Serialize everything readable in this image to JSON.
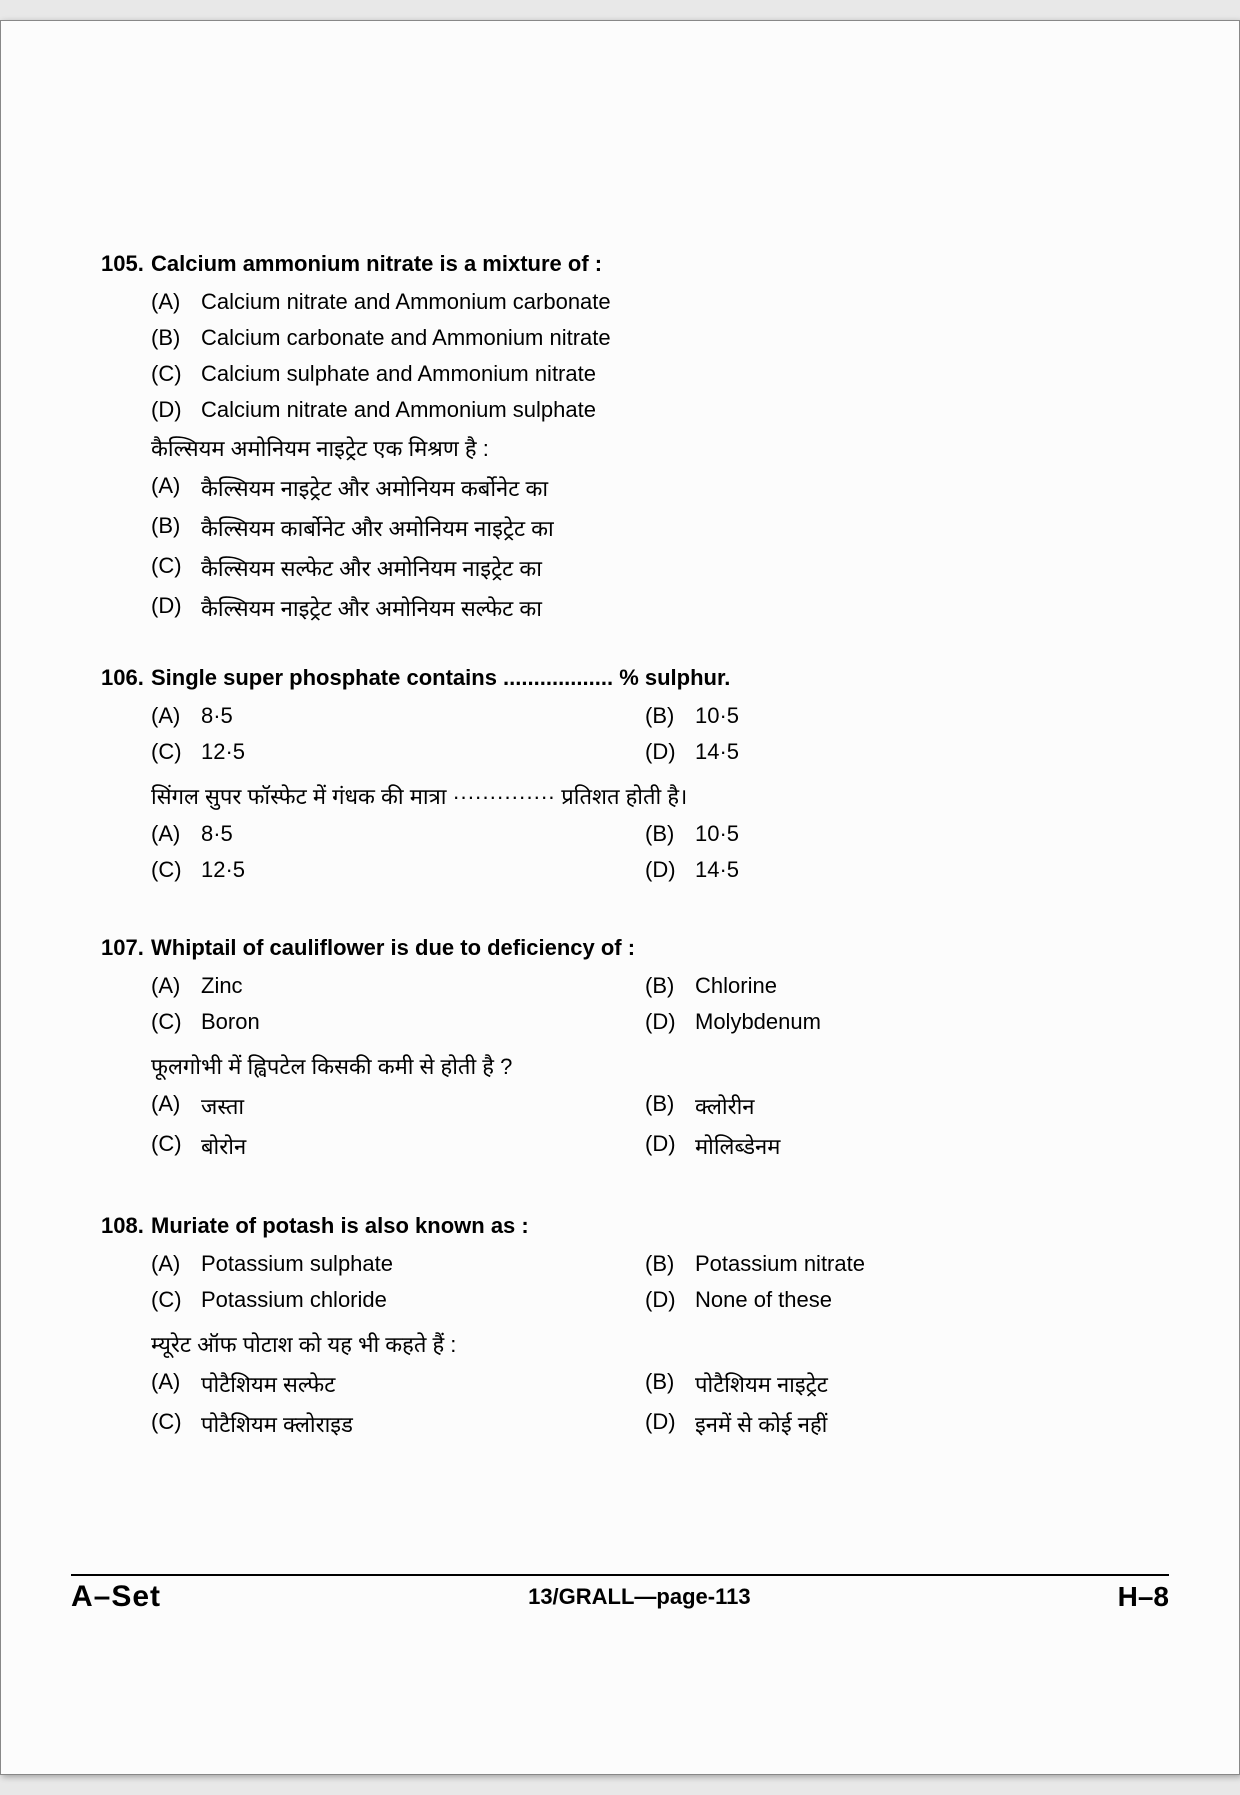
{
  "questions": [
    {
      "number": "105.",
      "text_en": "Calcium ammonium nitrate is a mixture of :",
      "options_en": [
        {
          "label": "(A)",
          "text": "Calcium nitrate and Ammonium carbonate"
        },
        {
          "label": "(B)",
          "text": "Calcium carbonate and Ammonium nitrate"
        },
        {
          "label": "(C)",
          "text": "Calcium sulphate and Ammonium nitrate"
        },
        {
          "label": "(D)",
          "text": "Calcium nitrate and Ammonium sulphate"
        }
      ],
      "text_hi": "कैल्सियम अमोनियम नाइट्रेट एक मिश्रण है :",
      "options_hi": [
        {
          "label": "(A)",
          "text": "कैल्सियम नाइट्रेट और अमोनियम कर्बोनेट का"
        },
        {
          "label": "(B)",
          "text": "कैल्सियम कार्बोनेट और अमोनियम नाइट्रेट का"
        },
        {
          "label": "(C)",
          "text": "कैल्सियम सल्फेट और अमोनियम नाइट्रेट का"
        },
        {
          "label": "(D)",
          "text": "कैल्सियम नाइट्रेट और अमोनियम सल्फेट का"
        }
      ],
      "layout": "single"
    },
    {
      "number": "106.",
      "text_en": "Single super phosphate contains .................. % sulphur.",
      "options_en": [
        {
          "label": "(A)",
          "text": "8·5"
        },
        {
          "label": "(B)",
          "text": "10·5"
        },
        {
          "label": "(C)",
          "text": "12·5"
        },
        {
          "label": "(D)",
          "text": "14·5"
        }
      ],
      "text_hi": "सिंगल सुपर फॉस्फेट में गंधक की मात्रा ·············· प्रतिशत होती है।",
      "options_hi": [
        {
          "label": "(A)",
          "text": "8·5"
        },
        {
          "label": "(B)",
          "text": "10·5"
        },
        {
          "label": "(C)",
          "text": "12·5"
        },
        {
          "label": "(D)",
          "text": "14·5"
        }
      ],
      "layout": "two-col"
    },
    {
      "number": "107.",
      "text_en": "Whiptail of cauliflower is due to deficiency of :",
      "options_en": [
        {
          "label": "(A)",
          "text": "Zinc"
        },
        {
          "label": "(B)",
          "text": "Chlorine"
        },
        {
          "label": "(C)",
          "text": "Boron"
        },
        {
          "label": "(D)",
          "text": "Molybdenum"
        }
      ],
      "text_hi": "फूलगोभी में ह्विपटेल किसकी कमी से होती है ?",
      "options_hi": [
        {
          "label": "(A)",
          "text": "जस्ता"
        },
        {
          "label": "(B)",
          "text": "क्लोरीन"
        },
        {
          "label": "(C)",
          "text": "बोरोन"
        },
        {
          "label": "(D)",
          "text": "मोलिब्डेनम"
        }
      ],
      "layout": "two-col"
    },
    {
      "number": "108.",
      "text_en": "Muriate of potash is also known as :",
      "options_en": [
        {
          "label": "(A)",
          "text": "Potassium sulphate"
        },
        {
          "label": "(B)",
          "text": "Potassium nitrate"
        },
        {
          "label": "(C)",
          "text": "Potassium chloride"
        },
        {
          "label": "(D)",
          "text": "None of these"
        }
      ],
      "text_hi": "म्यूरेट ऑफ पोटाश को यह भी कहते हैं :",
      "options_hi": [
        {
          "label": "(A)",
          "text": "पोटैशियम सल्फेट"
        },
        {
          "label": "(B)",
          "text": "पोटैशियम नाइट्रेट"
        },
        {
          "label": "(C)",
          "text": "पोटैशियम क्लोराइड"
        },
        {
          "label": "(D)",
          "text": "इनमें से कोई नहीं"
        }
      ],
      "layout": "two-col"
    }
  ],
  "footer": {
    "left": "A–Set",
    "center": "13/GRALL—page-113",
    "right": "H–8"
  }
}
